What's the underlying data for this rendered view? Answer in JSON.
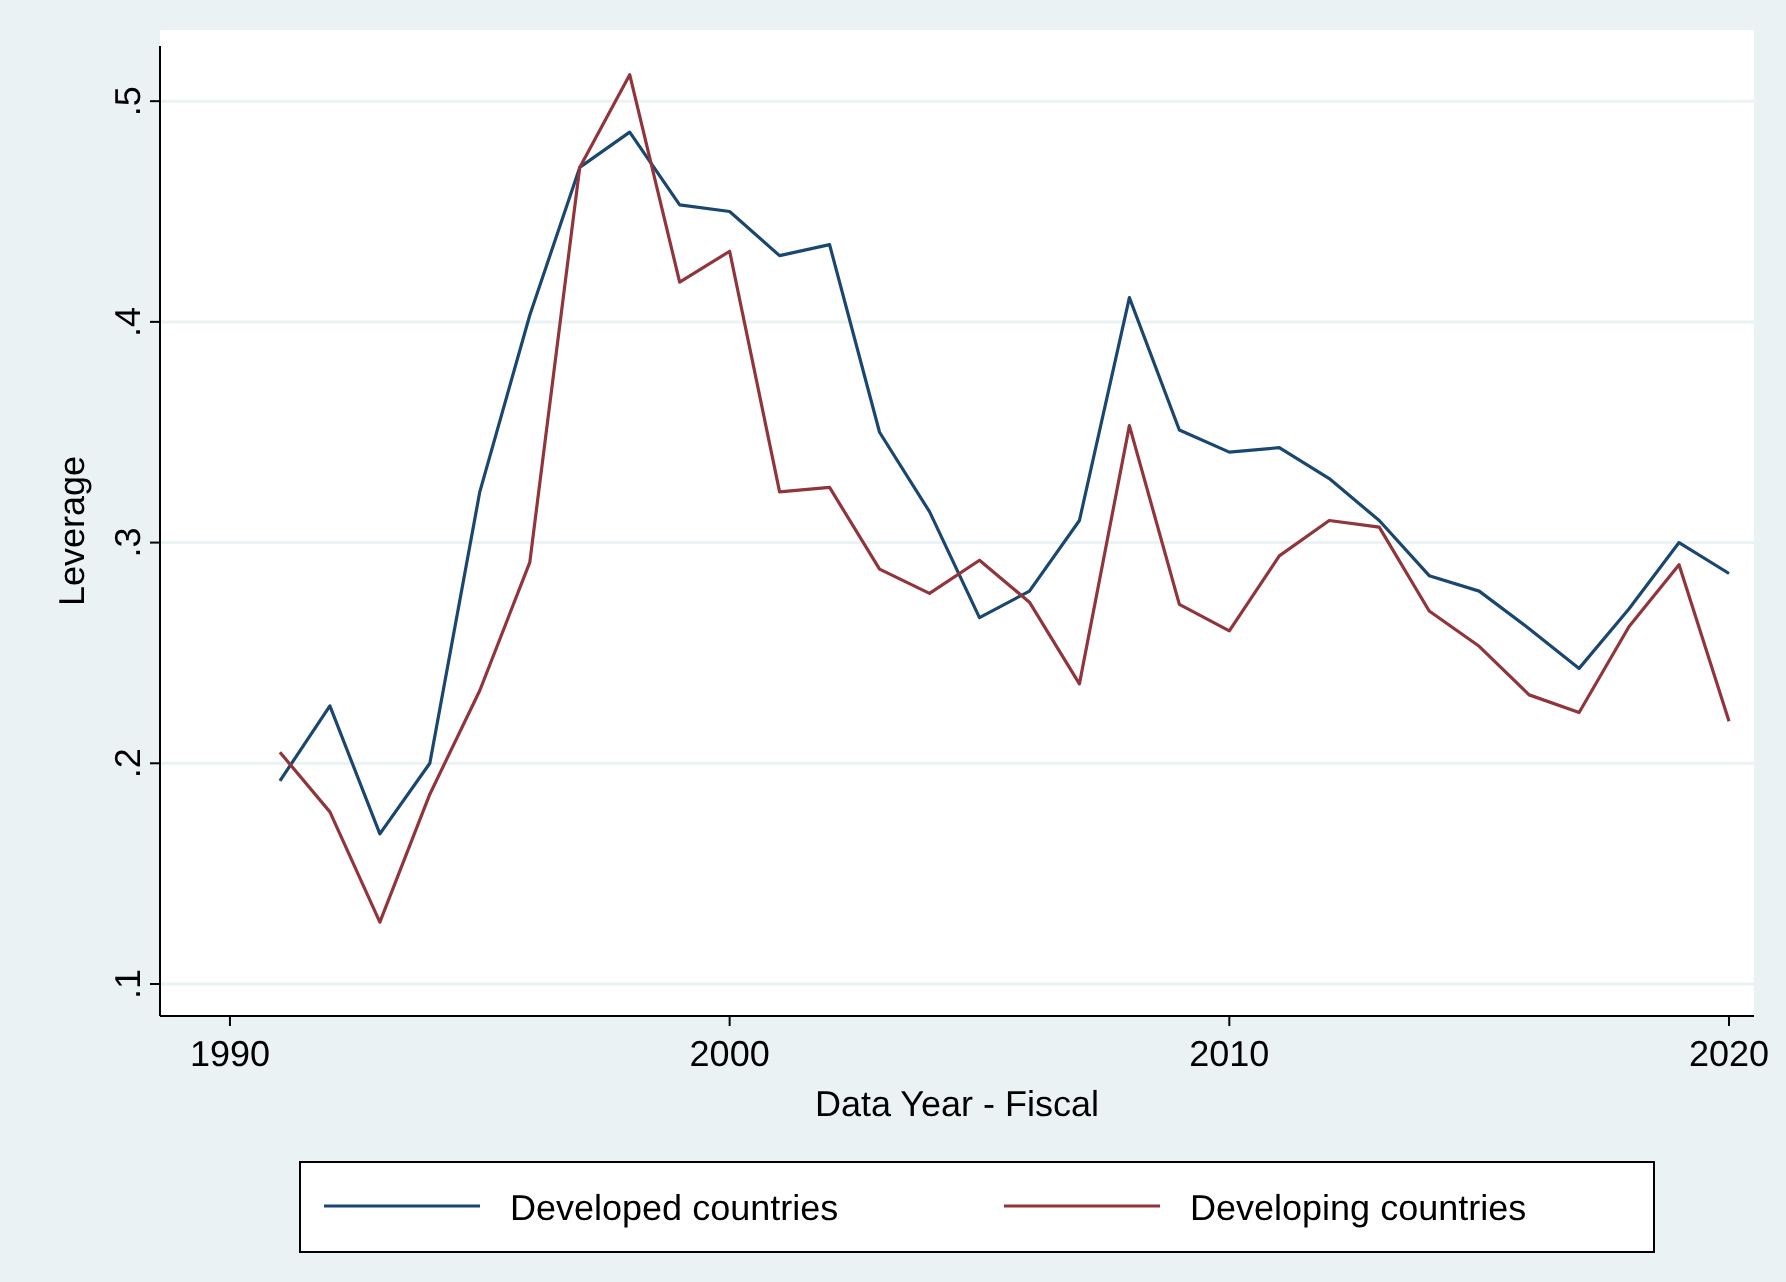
{
  "chart_data": {
    "type": "line",
    "xlabel": "Data Year - Fiscal",
    "ylabel": "Leverage",
    "x": [
      1991,
      1992,
      1993,
      1994,
      1995,
      1996,
      1997,
      1998,
      1999,
      2000,
      2001,
      2002,
      2003,
      2004,
      2005,
      2006,
      2007,
      2008,
      2009,
      2010,
      2011,
      2012,
      2013,
      2014,
      2015,
      2016,
      2017,
      2018,
      2019,
      2020
    ],
    "series": [
      {
        "name": "Developed countries",
        "color": "#1a476f",
        "values": [
          0.192,
          0.226,
          0.168,
          0.2,
          0.323,
          0.403,
          0.47,
          0.486,
          0.453,
          0.45,
          0.43,
          0.435,
          0.35,
          0.314,
          0.266,
          0.278,
          0.31,
          0.411,
          0.351,
          0.341,
          0.343,
          0.329,
          0.31,
          0.285,
          0.278,
          0.261,
          0.243,
          0.27,
          0.3,
          0.286
        ]
      },
      {
        "name": "Developing countries",
        "color": "#90353b",
        "values": [
          0.205,
          0.178,
          0.128,
          0.186,
          0.233,
          0.291,
          0.47,
          0.512,
          0.418,
          0.432,
          0.323,
          0.325,
          0.288,
          0.277,
          0.292,
          0.273,
          0.236,
          0.353,
          0.272,
          0.26,
          0.294,
          0.31,
          0.307,
          0.269,
          0.253,
          0.231,
          0.223,
          0.262,
          0.29,
          0.219
        ]
      }
    ],
    "xlim": [
      1988.6,
      2020.5
    ],
    "xticks": [
      1990,
      2000,
      2010,
      2020
    ],
    "ylim": [
      0.0855,
      0.525
    ],
    "yticks": [
      {
        "value": 0.1,
        "label": ".1"
      },
      {
        "value": 0.2,
        "label": ".2"
      },
      {
        "value": 0.3,
        "label": ".3"
      },
      {
        "value": 0.4,
        "label": ".4"
      },
      {
        "value": 0.5,
        "label": ".5"
      }
    ],
    "grid": "y",
    "legend": "bottom",
    "marker": "none",
    "line_style": "solid"
  }
}
